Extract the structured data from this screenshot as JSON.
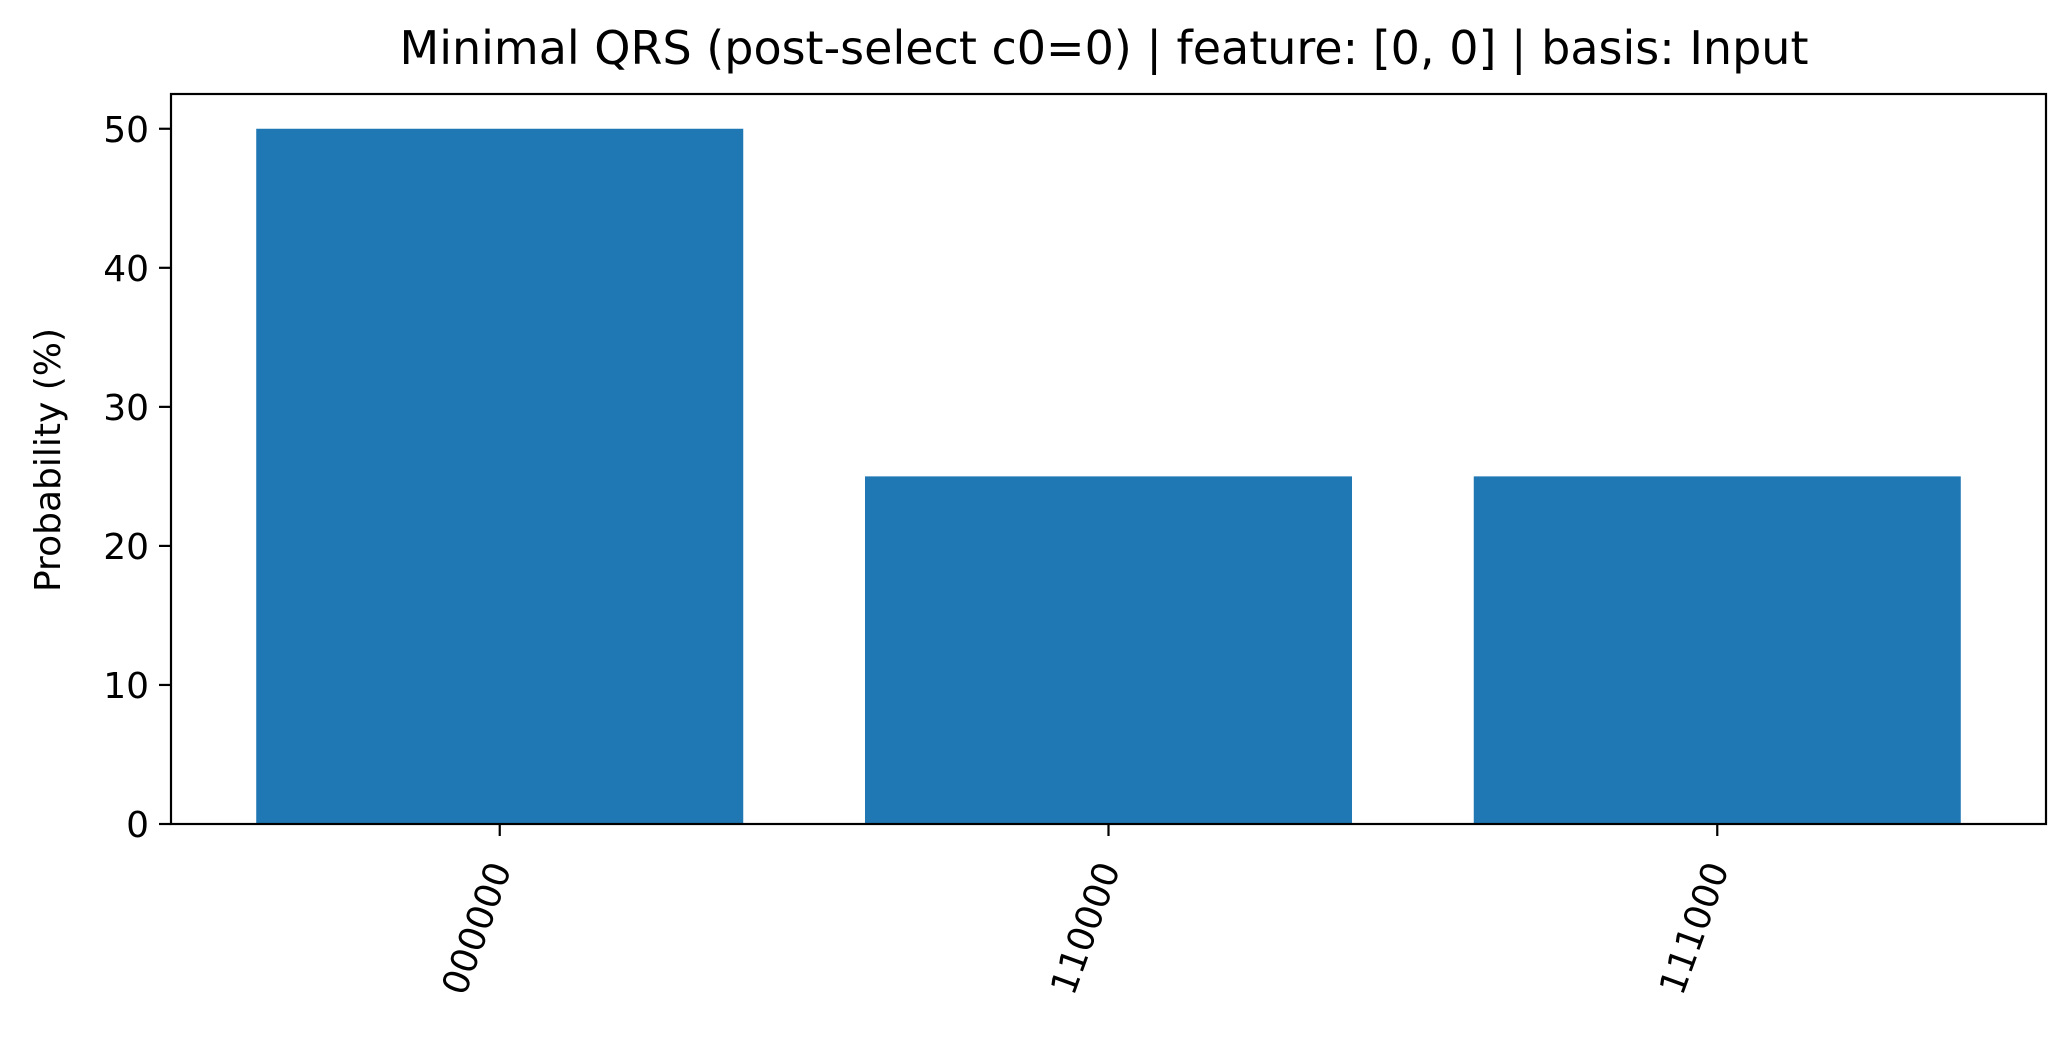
{
  "chart_data": {
    "type": "bar",
    "title": "Minimal QRS (post-select c0=0) | feature: [0, 0] | basis: Input",
    "xlabel": "",
    "ylabel": "Probability (%)",
    "categories": [
      "000000",
      "110000",
      "111000"
    ],
    "values": [
      50,
      25,
      25
    ],
    "ylim": [
      0,
      52.5
    ],
    "yticks": [
      0,
      10,
      20,
      30,
      40,
      50
    ],
    "bar_color": "#1f77b4",
    "grid": false,
    "legend": "none"
  }
}
